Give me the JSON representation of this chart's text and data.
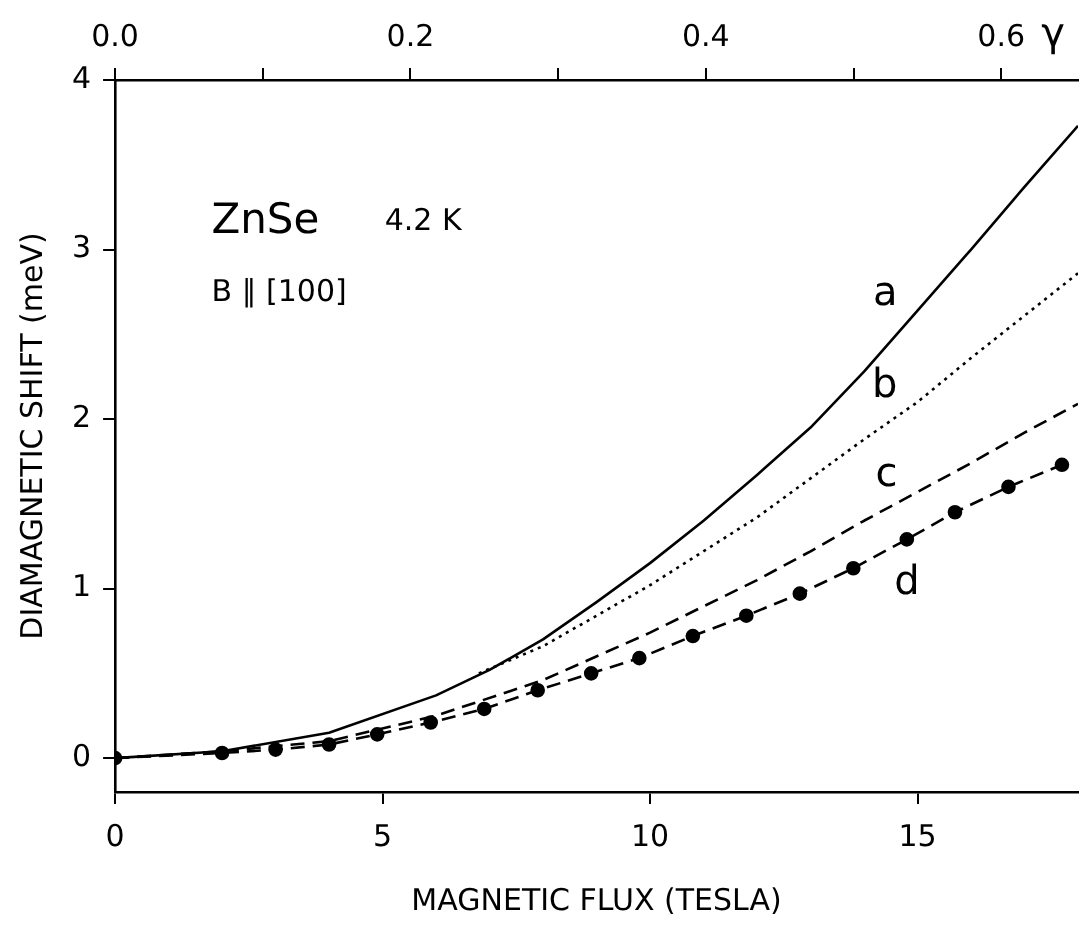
{
  "chart_data": {
    "type": "line",
    "xlabel": "MAGNETIC FLUX (TESLA)",
    "ylabel": "DIAMAGNETIC SHIFT (meV)",
    "x2label": "γ",
    "xlim": [
      0,
      18
    ],
    "xticks": [
      0,
      5,
      10,
      15
    ],
    "ylim": [
      -0.2,
      4
    ],
    "yticks": [
      0,
      1,
      2,
      3,
      4
    ],
    "x2lim": [
      0,
      0.652
    ],
    "x2ticks": [
      {
        "value": 0,
        "label": "0.0"
      },
      {
        "value": 0.1,
        "label": null
      },
      {
        "value": 0.2,
        "label": "0.2"
      },
      {
        "value": 0.3,
        "label": null
      },
      {
        "value": 0.4,
        "label": "0.4"
      },
      {
        "value": 0.5,
        "label": null
      },
      {
        "value": 0.6,
        "label": "0.6"
      }
    ],
    "grid": false,
    "legend": false,
    "series": [
      {
        "name": "a",
        "color": "#000000",
        "line_style": "solid",
        "marker": "none",
        "x": [
          0,
          2,
          4,
          6,
          7,
          8,
          9,
          10,
          11,
          12,
          13,
          14,
          15,
          16,
          17,
          18
        ],
        "values": [
          0,
          0.04,
          0.15,
          0.37,
          0.52,
          0.7,
          0.92,
          1.15,
          1.4,
          1.67,
          1.95,
          2.28,
          2.64,
          3.0,
          3.37,
          3.73
        ]
      },
      {
        "name": "b",
        "color": "#000000",
        "line_style": "dotted",
        "marker": "none",
        "x": [
          6.8,
          8,
          10,
          12,
          14,
          15,
          16,
          18
        ],
        "values": [
          0.5,
          0.66,
          1.02,
          1.42,
          1.88,
          2.1,
          2.36,
          2.86
        ]
      },
      {
        "name": "c",
        "color": "#000000",
        "line_style": "dashed",
        "marker": "none",
        "x": [
          0,
          2,
          4,
          6,
          8,
          10,
          12,
          13,
          14,
          15,
          16,
          17,
          18
        ],
        "values": [
          0,
          0.04,
          0.1,
          0.25,
          0.46,
          0.74,
          1.05,
          1.22,
          1.4,
          1.57,
          1.74,
          1.92,
          2.09
        ]
      },
      {
        "name": "d",
        "color": "#000000",
        "line_style": "dashed",
        "marker": "circle",
        "x": [
          0,
          2,
          3,
          4,
          4.9,
          5.9,
          6.9,
          7.9,
          8.9,
          9.8,
          10.8,
          11.8,
          12.8,
          13.8,
          14.8,
          15.7,
          16.7,
          17.7
        ],
        "values": [
          0,
          0.03,
          0.05,
          0.08,
          0.14,
          0.21,
          0.29,
          0.4,
          0.5,
          0.59,
          0.72,
          0.84,
          0.97,
          1.12,
          1.29,
          1.45,
          1.6,
          1.73
        ]
      }
    ],
    "annotations": [
      "ZnSe",
      "4.2 K",
      "B ∥ [100]"
    ]
  }
}
